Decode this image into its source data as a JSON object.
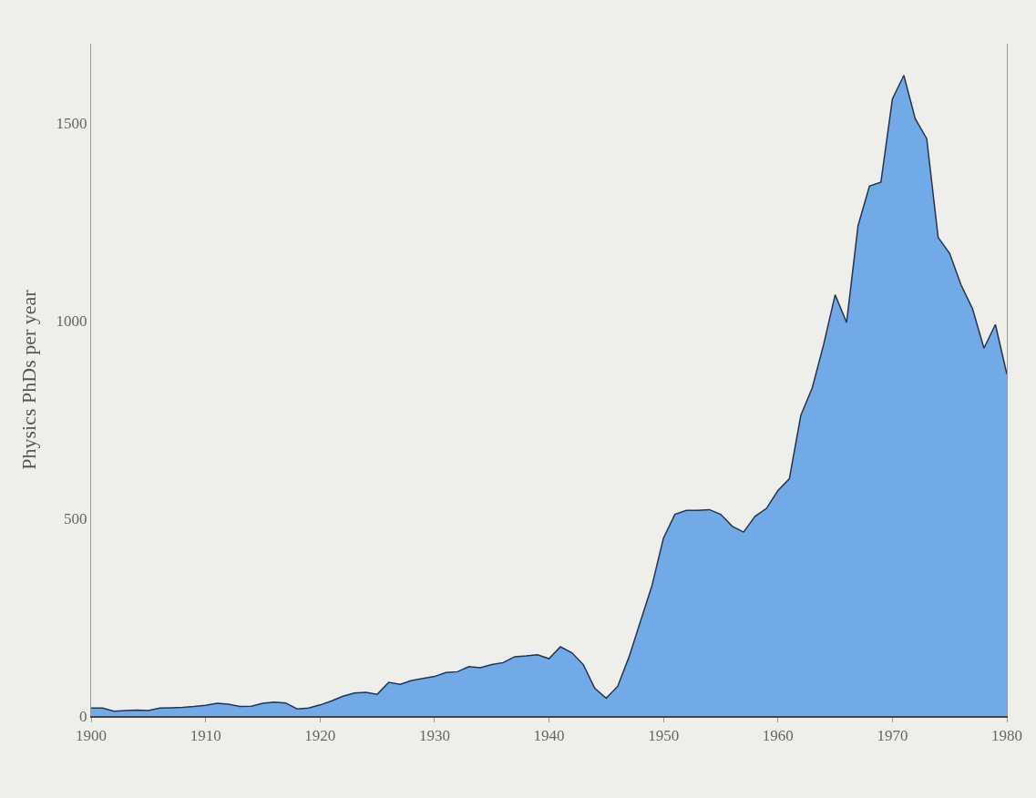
{
  "chart_data": {
    "type": "area",
    "ylabel": "Physics PhDs per year",
    "x": [
      1900,
      1901,
      1902,
      1903,
      1904,
      1905,
      1906,
      1907,
      1908,
      1909,
      1910,
      1911,
      1912,
      1913,
      1914,
      1915,
      1916,
      1917,
      1918,
      1919,
      1920,
      1921,
      1922,
      1923,
      1924,
      1925,
      1926,
      1927,
      1928,
      1929,
      1930,
      1931,
      1932,
      1933,
      1934,
      1935,
      1936,
      1937,
      1938,
      1939,
      1940,
      1941,
      1942,
      1943,
      1944,
      1945,
      1946,
      1947,
      1948,
      1949,
      1950,
      1951,
      1952,
      1953,
      1954,
      1955,
      1956,
      1957,
      1958,
      1959,
      1960,
      1961,
      1962,
      1963,
      1964,
      1965,
      1966,
      1967,
      1968,
      1969,
      1970,
      1971,
      1972,
      1973,
      1974,
      1975,
      1976,
      1977,
      1978,
      1979,
      1980
    ],
    "series": [
      {
        "color": "#72aae8",
        "values": [
          20,
          20,
          12,
          14,
          15,
          14,
          20,
          21,
          22,
          24,
          27,
          32,
          30,
          24,
          25,
          32,
          35,
          33,
          18,
          20,
          28,
          38,
          50,
          58,
          60,
          55,
          85,
          80,
          90,
          95,
          100,
          110,
          112,
          125,
          122,
          130,
          135,
          150,
          152,
          155,
          145,
          175,
          160,
          130,
          70,
          45,
          75,
          150,
          240,
          330,
          450,
          510,
          520,
          520,
          522,
          510,
          480,
          465,
          505,
          525,
          570,
          600,
          760,
          830,
          940,
          1065,
          995,
          1240,
          1340,
          1350,
          1560,
          1620,
          1510,
          1460,
          1210,
          1170,
          1090,
          1030,
          930,
          990,
          865
        ]
      }
    ],
    "xlim": [
      1900,
      1980
    ],
    "xticks": [
      1900,
      1910,
      1920,
      1930,
      1940,
      1950,
      1960,
      1970,
      1980
    ],
    "ylim": [
      0,
      1700
    ],
    "yticks": [
      0,
      500,
      1000,
      1500
    ],
    "grid": false
  }
}
